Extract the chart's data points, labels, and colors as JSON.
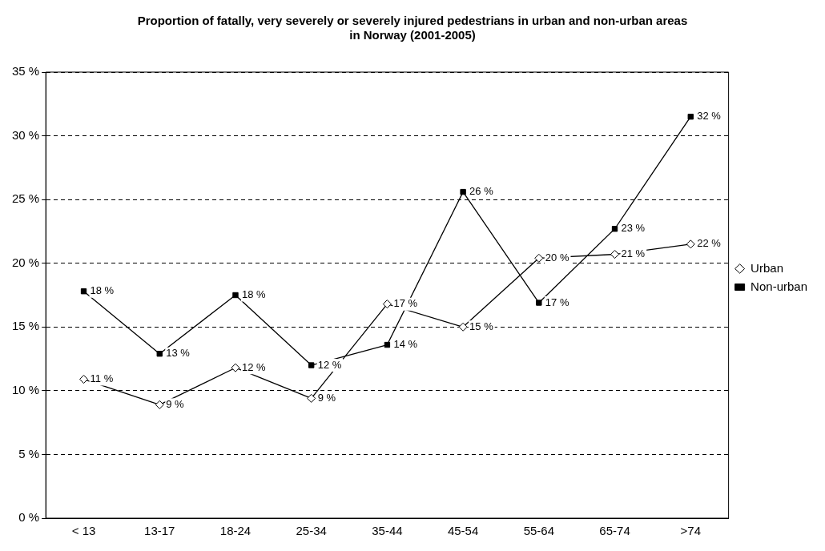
{
  "chart_data": {
    "type": "line",
    "title": "Proportion of fatally, very severely or severely injured pedestrians in urban and non-urban areas in Norway (2001-2005)",
    "categories": [
      "< 13",
      "13-17",
      "18-24",
      "25-34",
      "35-44",
      "45-54",
      "55-64",
      "65-74",
      ">74"
    ],
    "series": [
      {
        "name": "Urban",
        "color": "#000000",
        "marker": "diamond",
        "values": [
          10.9,
          8.9,
          11.8,
          9.4,
          16.8,
          15.0,
          20.4,
          20.7,
          21.5
        ],
        "value_labels": [
          "11 %",
          "9 %",
          "12 %",
          "9 %",
          "17 %",
          "15 %",
          "20 %",
          "21 %",
          "22 %"
        ]
      },
      {
        "name": "Non-urban",
        "color": "#000000",
        "marker": "square",
        "values": [
          17.8,
          12.9,
          17.5,
          12.0,
          13.6,
          25.6,
          16.9,
          22.7,
          31.5
        ],
        "value_labels": [
          "18 %",
          "13 %",
          "18 %",
          "12 %",
          "14 %",
          "26 %",
          "17 %",
          "23 %",
          "32 %"
        ]
      }
    ],
    "ylim": [
      0,
      35
    ],
    "yticks": [
      {
        "value": 0,
        "label": "0 %"
      },
      {
        "value": 5,
        "label": "5 %"
      },
      {
        "value": 10,
        "label": "10 %"
      },
      {
        "value": 15,
        "label": "15 %"
      },
      {
        "value": 20,
        "label": "20 %"
      },
      {
        "value": 25,
        "label": "25 %"
      },
      {
        "value": 30,
        "label": "30 %"
      },
      {
        "value": 35,
        "label": "35 %"
      }
    ],
    "grid": "y",
    "legend": "right",
    "line_style": "solid"
  }
}
